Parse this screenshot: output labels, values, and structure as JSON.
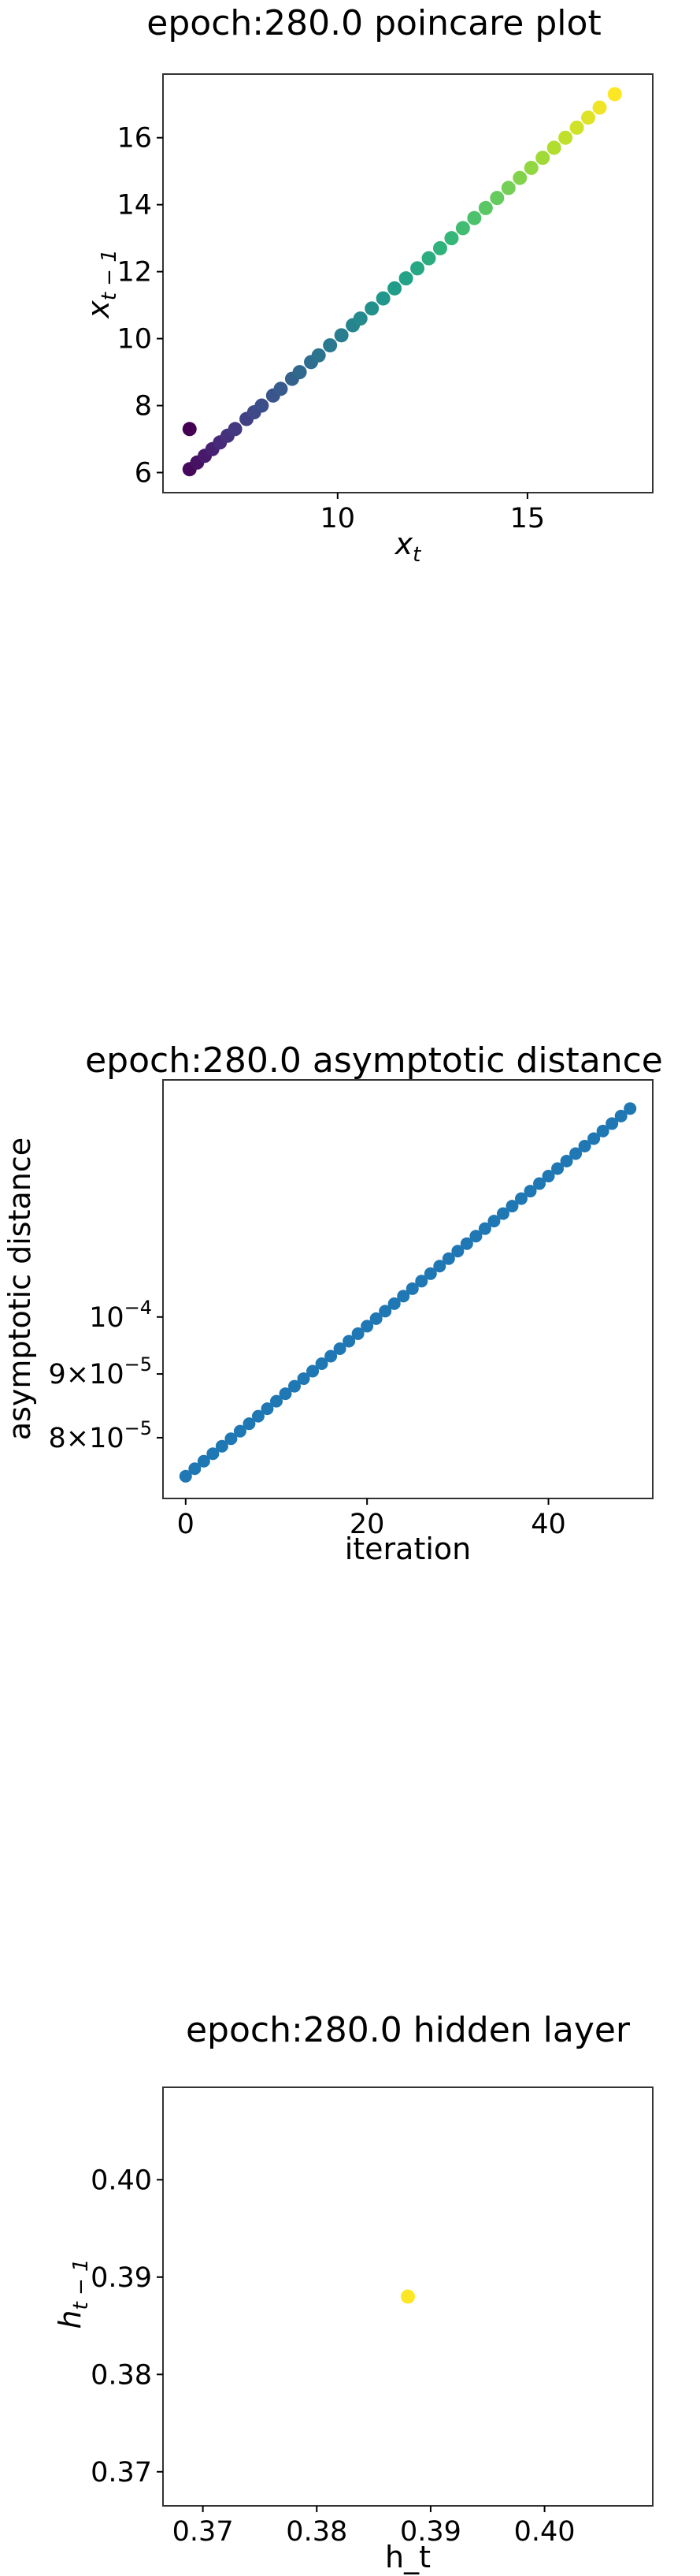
{
  "chart_data": [
    {
      "type": "scatter",
      "title": "epoch:280.0 poincare plot",
      "xlabel": "x_t",
      "ylabel": "x_{t-1}",
      "xlim": [
        5.4,
        18.3
      ],
      "ylim": [
        5.4,
        17.9
      ],
      "xticks": [
        "10",
        "15"
      ],
      "yticks": [
        "6",
        "8",
        "10",
        "12",
        "14",
        "16"
      ],
      "colormap": "viridis",
      "grid": false,
      "points": [
        {
          "x": 6.1,
          "y": 7.3
        },
        {
          "x": 6.1,
          "y": 6.1
        },
        {
          "x": 6.3,
          "y": 6.3
        },
        {
          "x": 6.5,
          "y": 6.5
        },
        {
          "x": 6.7,
          "y": 6.7
        },
        {
          "x": 6.9,
          "y": 6.9
        },
        {
          "x": 7.1,
          "y": 7.1
        },
        {
          "x": 7.3,
          "y": 7.3
        },
        {
          "x": 7.6,
          "y": 7.6
        },
        {
          "x": 7.8,
          "y": 7.8
        },
        {
          "x": 8.0,
          "y": 8.0
        },
        {
          "x": 8.3,
          "y": 8.3
        },
        {
          "x": 8.5,
          "y": 8.5
        },
        {
          "x": 8.8,
          "y": 8.8
        },
        {
          "x": 9.0,
          "y": 9.0
        },
        {
          "x": 9.3,
          "y": 9.3
        },
        {
          "x": 9.5,
          "y": 9.5
        },
        {
          "x": 9.8,
          "y": 9.8
        },
        {
          "x": 10.1,
          "y": 10.1
        },
        {
          "x": 10.4,
          "y": 10.4
        },
        {
          "x": 10.6,
          "y": 10.6
        },
        {
          "x": 10.9,
          "y": 10.9
        },
        {
          "x": 11.2,
          "y": 11.2
        },
        {
          "x": 11.5,
          "y": 11.5
        },
        {
          "x": 11.8,
          "y": 11.8
        },
        {
          "x": 12.1,
          "y": 12.1
        },
        {
          "x": 12.4,
          "y": 12.4
        },
        {
          "x": 12.7,
          "y": 12.7
        },
        {
          "x": 13.0,
          "y": 13.0
        },
        {
          "x": 13.3,
          "y": 13.3
        },
        {
          "x": 13.6,
          "y": 13.6
        },
        {
          "x": 13.9,
          "y": 13.9
        },
        {
          "x": 14.2,
          "y": 14.2
        },
        {
          "x": 14.5,
          "y": 14.5
        },
        {
          "x": 14.8,
          "y": 14.8
        },
        {
          "x": 15.1,
          "y": 15.1
        },
        {
          "x": 15.4,
          "y": 15.4
        },
        {
          "x": 15.7,
          "y": 15.7
        },
        {
          "x": 16.0,
          "y": 16.0
        },
        {
          "x": 16.3,
          "y": 16.3
        },
        {
          "x": 16.6,
          "y": 16.6
        },
        {
          "x": 16.9,
          "y": 16.9
        },
        {
          "x": 17.3,
          "y": 17.3
        }
      ]
    },
    {
      "type": "scatter",
      "title": "epoch:280.0 asymptotic distance",
      "xlabel": "iteration",
      "ylabel": "asymptotic distance",
      "xlim": [
        -2.5,
        51.5
      ],
      "ylim": [
        7.15e-05,
        0.000155
      ],
      "yscale": "log",
      "xticks": [
        "0",
        "20",
        "40"
      ],
      "yticks": [
        {
          "value": 0.0001,
          "base": "10",
          "exp": "−4"
        },
        {
          "value": 9e-05,
          "base": "9×10",
          "exp": "−5"
        },
        {
          "value": 8e-05,
          "base": "8×10",
          "exp": "−5"
        }
      ],
      "color": "#1f77b4",
      "grid": false,
      "x": [
        0,
        1,
        2,
        3,
        4,
        5,
        6,
        7,
        8,
        9,
        10,
        11,
        12,
        13,
        14,
        15,
        16,
        17,
        18,
        19,
        20,
        21,
        22,
        23,
        24,
        25,
        26,
        27,
        28,
        29,
        30,
        31,
        32,
        33,
        34,
        35,
        36,
        37,
        38,
        39,
        40,
        41,
        42,
        43,
        44,
        45,
        46,
        47,
        48,
        49
      ],
      "y_start": 7.45e-05,
      "y_end": 0.000147
    },
    {
      "type": "scatter",
      "title": "epoch:280.0 hidden layer",
      "xlabel": "h_t",
      "ylabel": "h_{t-1}",
      "xlim": [
        0.3665,
        0.4095
      ],
      "ylim": [
        0.3665,
        0.4095
      ],
      "xticks": [
        "0.37",
        "0.38",
        "0.39",
        "0.40"
      ],
      "yticks": [
        "0.37",
        "0.38",
        "0.39",
        "0.40"
      ],
      "color": "#fde725",
      "grid": false,
      "points": [
        {
          "x": 0.388,
          "y": 0.388
        }
      ]
    }
  ]
}
